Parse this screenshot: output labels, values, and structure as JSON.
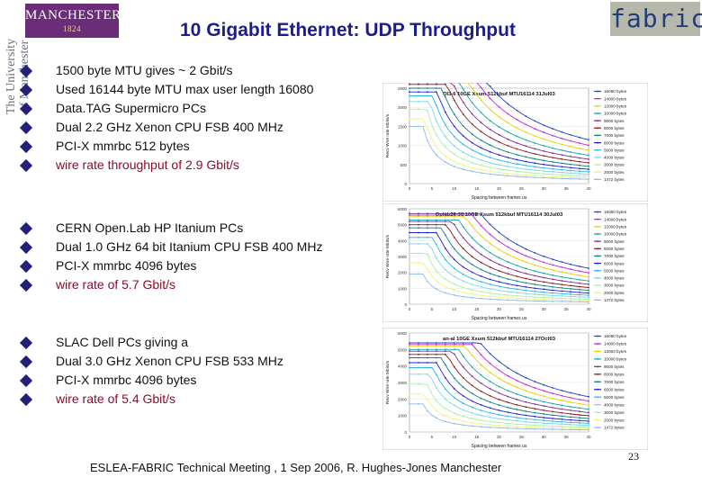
{
  "header": {
    "logo": {
      "name": "MANCHESTER",
      "year": "1824"
    },
    "university_vertical": [
      "The University",
      "of Manchester"
    ],
    "title": "10 Gigabit Ethernet: UDP Throughput",
    "fabric_logo": "fabric"
  },
  "sections": [
    {
      "items": [
        {
          "text": "1500 byte MTU gives ~ 2 Gbit/s",
          "highlight": false
        },
        {
          "text": "Used 16144 byte MTU max user length 16080",
          "highlight": false
        },
        {
          "text": "Data.TAG Supermicro PCs",
          "highlight": false
        },
        {
          "text": "Dual 2.2 GHz Xenon CPU FSB 400 MHz",
          "highlight": false
        },
        {
          "text": "PCI-X mmrbc 512 bytes",
          "highlight": false
        },
        {
          "text": "wire rate throughput of 2.9 Gbit/s",
          "highlight": true
        }
      ]
    },
    {
      "items": [
        {
          "text": "CERN Open.Lab HP Itanium PCs",
          "highlight": false
        },
        {
          "text": "Dual 1.0 GHz 64 bit Itanium CPU FSB 400 MHz",
          "highlight": false
        },
        {
          "text": "PCI-X mmrbc 4096 bytes",
          "highlight": false
        },
        {
          "text": "wire rate of 5.7 Gbit/s",
          "highlight": true
        }
      ]
    },
    {
      "items": [
        {
          "text": "SLAC Dell PCs giving a",
          "highlight": false
        },
        {
          "text": "Dual 3.0 GHz Xenon CPU FSB 533 MHz",
          "highlight": false
        },
        {
          "text": "PCI-X mmrbc 4096 bytes",
          "highlight": false
        },
        {
          "text": "wire rate of 5.4 Gbit/s",
          "highlight": true
        }
      ]
    }
  ],
  "chart_data": [
    {
      "type": "line",
      "title": "DI3-6 10GE Xsum 512kbuf MTU16114 31Jul03",
      "xlabel": "Spacing between frames us",
      "ylabel": "Recv Wire rate Mbits/s",
      "xticks": [
        "0",
        "5",
        "10",
        "15",
        "20",
        "25",
        "30",
        "35",
        "40"
      ],
      "yticks": [
        "2500",
        "2000",
        "1500",
        "1000",
        "500",
        "0"
      ],
      "xlim": [
        0,
        40
      ],
      "ylim": [
        0,
        2500
      ],
      "series": [
        {
          "name": "16080 bytes",
          "peak": 2900,
          "color": "#1f3fbf"
        },
        {
          "name": "14000 bytes",
          "peak": 2850,
          "color": "#c026d3"
        },
        {
          "name": "12000 bytes",
          "peak": 2800,
          "color": "#e8d000"
        },
        {
          "name": "10000 bytes",
          "peak": 2700,
          "color": "#16a3a3"
        },
        {
          "name": "9000 bytes",
          "peak": 2650,
          "color": "#7c2d92"
        },
        {
          "name": "8000 bytes",
          "peak": 2600,
          "color": "#8b1a1a"
        },
        {
          "name": "7000 bytes",
          "peak": 2500,
          "color": "#0e7f7f"
        },
        {
          "name": "6000 bytes",
          "peak": 2400,
          "color": "#1f1fcf"
        },
        {
          "name": "5000 bytes",
          "peak": 2300,
          "color": "#2ab4e8"
        },
        {
          "name": "4000 bytes",
          "peak": 2150,
          "color": "#7fd4e8"
        },
        {
          "name": "3000 bytes",
          "peak": 1950,
          "color": "#a7f0a7"
        },
        {
          "name": "2000 bytes",
          "peak": 1700,
          "color": "#f2f27a"
        },
        {
          "name": "1472 bytes",
          "peak": 1500,
          "color": "#8fb8f0"
        }
      ]
    },
    {
      "type": "line",
      "title": "Oplab29-30 10GE Xsum 512kbuf MTU16114 30Jul03",
      "xlabel": "Spacing between frames us",
      "ylabel": "Recv Wire rate Mbits/s",
      "xticks": [
        "0",
        "5",
        "10",
        "15",
        "20",
        "25",
        "30",
        "35",
        "40"
      ],
      "yticks": [
        "6000",
        "5000",
        "4000",
        "3000",
        "2000",
        "1000",
        "0"
      ],
      "xlim": [
        0,
        40
      ],
      "ylim": [
        0,
        6000
      ],
      "series": [
        {
          "name": "16080 bytes",
          "peak": 5700,
          "color": "#1f3fbf"
        },
        {
          "name": "14000 bytes",
          "peak": 5600,
          "color": "#c026d3"
        },
        {
          "name": "12000 bytes",
          "peak": 5500,
          "color": "#e8d000"
        },
        {
          "name": "10000 bytes",
          "peak": 5300,
          "color": "#16a3a3"
        },
        {
          "name": "9000 bytes",
          "peak": 5200,
          "color": "#7c2d92"
        },
        {
          "name": "8000 bytes",
          "peak": 5000,
          "color": "#8b1a1a"
        },
        {
          "name": "7000 bytes",
          "peak": 4800,
          "color": "#0e7f7f"
        },
        {
          "name": "6000 bytes",
          "peak": 4500,
          "color": "#1f1fcf"
        },
        {
          "name": "5000 bytes",
          "peak": 4200,
          "color": "#2ab4e8"
        },
        {
          "name": "4000 bytes",
          "peak": 3800,
          "color": "#7fd4e8"
        },
        {
          "name": "3000 bytes",
          "peak": 3200,
          "color": "#a7f0a7"
        },
        {
          "name": "2000 bytes",
          "peak": 2600,
          "color": "#f2f27a"
        },
        {
          "name": "1472 bytes",
          "peak": 1900,
          "color": "#8fb8f0"
        }
      ]
    },
    {
      "type": "line",
      "title": "an-al 10GE Xsum 512kbuf MTU16114 27Oct03",
      "xlabel": "Spacing between frames us",
      "ylabel": "Recv Wire rate Mbits/s",
      "xticks": [
        "0",
        "5",
        "10",
        "15",
        "20",
        "25",
        "30",
        "35",
        "40"
      ],
      "yticks": [
        "6000",
        "5000",
        "4000",
        "3000",
        "2000",
        "1000",
        "0"
      ],
      "xlim": [
        0,
        40
      ],
      "ylim": [
        0,
        6000
      ],
      "series": [
        {
          "name": "16080 bytes",
          "peak": 5400,
          "color": "#1f3fbf"
        },
        {
          "name": "14000 bytes",
          "peak": 5300,
          "color": "#c026d3"
        },
        {
          "name": "12000 bytes",
          "peak": 5200,
          "color": "#e8d000"
        },
        {
          "name": "10000 bytes",
          "peak": 5000,
          "color": "#16a3a3"
        },
        {
          "name": "9000 bytes",
          "peak": 4900,
          "color": "#7c2d92"
        },
        {
          "name": "8000 bytes",
          "peak": 4700,
          "color": "#8b1a1a"
        },
        {
          "name": "7000 bytes",
          "peak": 4500,
          "color": "#0e7f7f"
        },
        {
          "name": "6000 bytes",
          "peak": 4200,
          "color": "#1f1fcf"
        },
        {
          "name": "5000 bytes",
          "peak": 3900,
          "color": "#2ab4e8"
        },
        {
          "name": "4000 bytes",
          "peak": 3500,
          "color": "#7fd4e8"
        },
        {
          "name": "3000 bytes",
          "peak": 2900,
          "color": "#a7f0a7"
        },
        {
          "name": "2000 bytes",
          "peak": 2300,
          "color": "#f2f27a"
        },
        {
          "name": "1472 bytes",
          "peak": 1700,
          "color": "#8fb8f0"
        }
      ]
    }
  ],
  "footer": {
    "text": "ESLEA-FABRIC Technical Meeting , 1 Sep 2006,  R. Hughes-Jones  Manchester",
    "page": "23"
  }
}
